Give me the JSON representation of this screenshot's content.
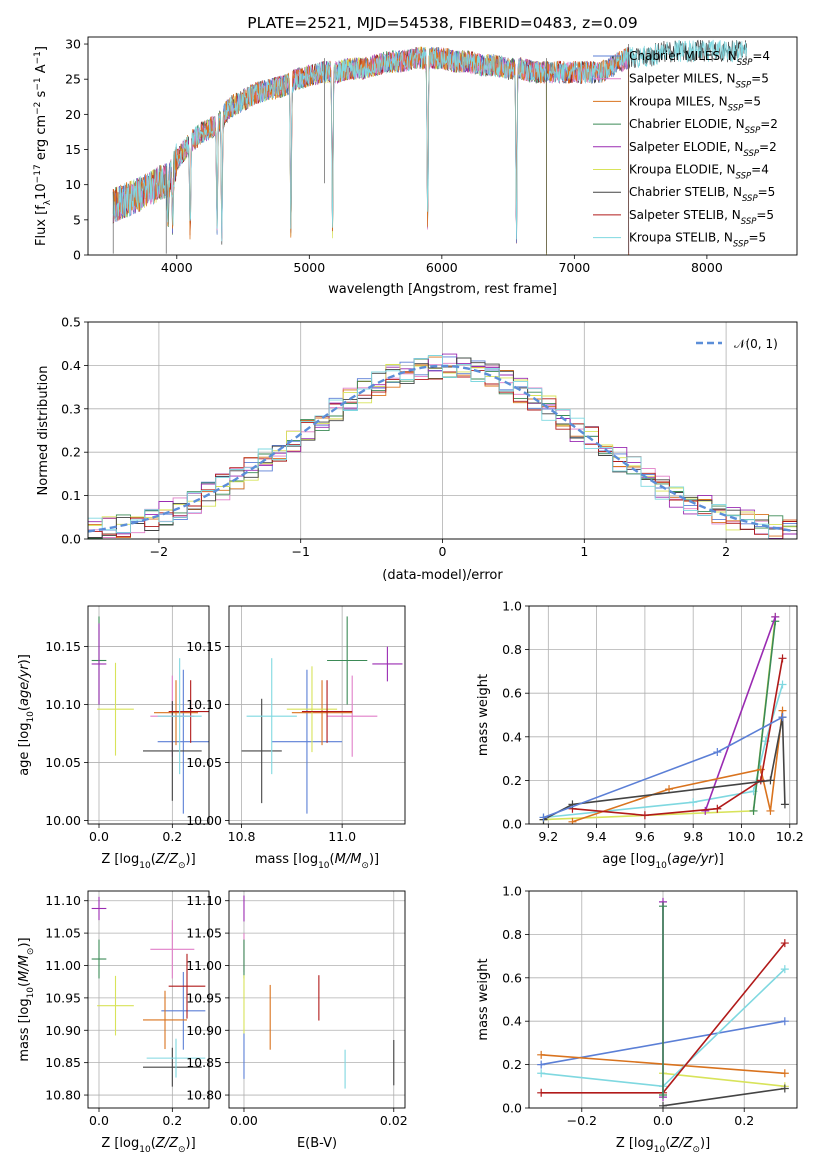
{
  "title": "PLATE=2521, MJD=54538, FIBERID=0483, z=0.09",
  "colors": {
    "chabrier_miles": "#5b7fd6",
    "salpeter_miles": "#e07fc8",
    "kroupa_miles": "#d9731e",
    "chabrier_elodie": "#3b8a56",
    "salpeter_elodie": "#9a2bb2",
    "kroupa_elodie": "#d8e35a",
    "chabrier_stelib": "#444444",
    "salpeter_stelib": "#b11a1a",
    "kroupa_stelib": "#7fd8e0",
    "gauss": "#5b8ed8"
  },
  "legend": [
    {
      "key": "chabrier_miles",
      "label": "Chabrier MILES, N",
      "n": "=4"
    },
    {
      "key": "salpeter_miles",
      "label": "Salpeter MILES, N",
      "n": "=5"
    },
    {
      "key": "kroupa_miles",
      "label": "Kroupa MILES, N",
      "n": "=5"
    },
    {
      "key": "chabrier_elodie",
      "label": "Chabrier ELODIE, N",
      "n": "=2"
    },
    {
      "key": "salpeter_elodie",
      "label": "Salpeter ELODIE, N",
      "n": "=2"
    },
    {
      "key": "kroupa_elodie",
      "label": "Kroupa ELODIE, N",
      "n": "=4"
    },
    {
      "key": "chabrier_stelib",
      "label": "Chabrier STELIB, N",
      "n": "=5"
    },
    {
      "key": "salpeter_stelib",
      "label": "Salpeter STELIB, N",
      "n": "=5"
    },
    {
      "key": "kroupa_stelib",
      "label": "Kroupa STELIB, N",
      "n": "=5"
    }
  ],
  "legend_sub": "SSP",
  "chart_data": [
    {
      "id": "spectrum",
      "type": "line",
      "xlabel": "wavelength [Angstrom, rest frame]",
      "ylabel": "Flux [f_λ 10^-17 erg cm^-2 s^-1 A^-1]",
      "xlim": [
        3330,
        8680
      ],
      "ylim": [
        0,
        31
      ],
      "xticks": [
        4000,
        5000,
        6000,
        7000,
        8000
      ],
      "yticks": [
        0,
        5,
        10,
        15,
        20,
        25,
        30
      ],
      "continuum": [
        [
          3520,
          7
        ],
        [
          3700,
          8.5
        ],
        [
          3850,
          10
        ],
        [
          3950,
          11
        ],
        [
          4000,
          13.5
        ],
        [
          4100,
          16
        ],
        [
          4200,
          17.5
        ],
        [
          4300,
          18.5
        ],
        [
          4400,
          21
        ],
        [
          4500,
          22
        ],
        [
          4600,
          23
        ],
        [
          4700,
          23.5
        ],
        [
          4800,
          24
        ],
        [
          4900,
          25
        ],
        [
          5000,
          25.5
        ],
        [
          5100,
          26
        ],
        [
          5200,
          26
        ],
        [
          5300,
          26.5
        ],
        [
          5400,
          26.5
        ],
        [
          5500,
          27
        ],
        [
          5600,
          27.5
        ],
        [
          5700,
          27.5
        ],
        [
          5800,
          28
        ],
        [
          5900,
          28
        ],
        [
          6000,
          28
        ],
        [
          6100,
          27.5
        ],
        [
          6200,
          27.5
        ],
        [
          6300,
          27
        ],
        [
          6400,
          27
        ],
        [
          6500,
          26.5
        ],
        [
          6600,
          26.5
        ],
        [
          6700,
          26
        ],
        [
          6800,
          26
        ],
        [
          6900,
          26
        ],
        [
          7000,
          26
        ],
        [
          7100,
          26
        ],
        [
          7200,
          26
        ],
        [
          7300,
          27
        ],
        [
          7400,
          28
        ],
        [
          7500,
          28
        ],
        [
          7600,
          28.5
        ],
        [
          7700,
          29
        ],
        [
          7800,
          29
        ],
        [
          7870,
          29
        ]
      ],
      "absorption_lines": [
        [
          3934,
          6
        ],
        [
          3969,
          5
        ],
        [
          4101,
          3
        ],
        [
          4304,
          4
        ],
        [
          4340,
          3
        ],
        [
          4861,
          3
        ],
        [
          5175,
          3
        ],
        [
          5893,
          4
        ],
        [
          6563,
          2
        ]
      ],
      "spikes": [
        [
          5115,
          10
        ],
        [
          6790,
          0
        ],
        [
          7410,
          0
        ],
        [
          3520,
          0
        ],
        [
          3920,
          0
        ]
      ]
    },
    {
      "id": "residuals",
      "type": "step-histogram",
      "xlabel": "(data-model)/error",
      "ylabel": "Normed distribution",
      "xlim": [
        -2.5,
        2.5
      ],
      "ylim": [
        0,
        0.5
      ],
      "xticks": [
        -2,
        -1,
        0,
        1,
        2
      ],
      "yticks": [
        0.0,
        0.1,
        0.2,
        0.3,
        0.4,
        0.5
      ],
      "bin_width": 0.1,
      "reference_curve": "N(0,1)",
      "reference_label": "𝒩(0, 1)"
    },
    {
      "id": "age_vs_Z",
      "type": "errorbar",
      "xlabel": "Z [log10(Z/Z☉)]",
      "ylabel": "age [log10(age/yr)]",
      "xlim": [
        -0.03,
        0.3
      ],
      "ylim": [
        9.997,
        10.185
      ],
      "xticks": [
        0.0,
        0.2
      ],
      "yticks": [
        10.0,
        10.05,
        10.1,
        10.15
      ],
      "points": [
        {
          "key": "chabrier_miles",
          "x": 0.23,
          "y": 10.068,
          "xerr": 0.07,
          "yerr": 0.062
        },
        {
          "key": "salpeter_miles",
          "x": 0.2,
          "y": 10.09,
          "xerr": 0.06,
          "yerr": 0.035
        },
        {
          "key": "kroupa_miles",
          "x": 0.21,
          "y": 10.093,
          "xerr": 0.06,
          "yerr": 0.028
        },
        {
          "key": "chabrier_elodie",
          "x": 0.0,
          "y": 10.138,
          "xerr": 0.02,
          "yerr": 0.038
        },
        {
          "key": "salpeter_elodie",
          "x": 0.0,
          "y": 10.135,
          "xerr": 0.02,
          "yerr": 0.035
        },
        {
          "key": "kroupa_elodie",
          "x": 0.045,
          "y": 10.096,
          "xerr": 0.05,
          "yerr": 0.04
        },
        {
          "key": "chabrier_stelib",
          "x": 0.2,
          "y": 10.06,
          "xerr": 0.08,
          "yerr": 0.043
        },
        {
          "key": "salpeter_stelib",
          "x": 0.25,
          "y": 10.094,
          "xerr": 0.06,
          "yerr": 0.027
        },
        {
          "key": "kroupa_stelib",
          "x": 0.22,
          "y": 10.09,
          "xerr": 0.06,
          "yerr": 0.05
        }
      ]
    },
    {
      "id": "age_vs_mass",
      "type": "errorbar",
      "xlabel": "mass [log10(M/M☉)]",
      "ylabel": "",
      "xlim": [
        10.775,
        11.125
      ],
      "ylim": [
        9.997,
        10.185
      ],
      "xticks": [
        10.8,
        11.0
      ],
      "yticks": [
        10.0,
        10.05,
        10.1,
        10.15
      ],
      "points": [
        {
          "key": "chabrier_miles",
          "x": 10.93,
          "y": 10.068,
          "xerr": 0.07,
          "yerr": 0.062
        },
        {
          "key": "salpeter_miles",
          "x": 11.02,
          "y": 10.09,
          "xerr": 0.05,
          "yerr": 0.035
        },
        {
          "key": "kroupa_miles",
          "x": 10.96,
          "y": 10.093,
          "xerr": 0.06,
          "yerr": 0.028
        },
        {
          "key": "chabrier_elodie",
          "x": 11.01,
          "y": 10.138,
          "xerr": 0.04,
          "yerr": 0.038
        },
        {
          "key": "salpeter_elodie",
          "x": 11.09,
          "y": 10.135,
          "xerr": 0.03,
          "yerr": 0.015
        },
        {
          "key": "kroupa_elodie",
          "x": 10.94,
          "y": 10.096,
          "xerr": 0.05,
          "yerr": 0.037
        },
        {
          "key": "chabrier_stelib",
          "x": 10.84,
          "y": 10.06,
          "xerr": 0.04,
          "yerr": 0.045
        },
        {
          "key": "salpeter_stelib",
          "x": 10.97,
          "y": 10.094,
          "xerr": 0.05,
          "yerr": 0.027
        },
        {
          "key": "kroupa_stelib",
          "x": 10.86,
          "y": 10.09,
          "xerr": 0.05,
          "yerr": 0.05
        }
      ]
    },
    {
      "id": "massweight_vs_age",
      "type": "line",
      "xlabel": "age [log10(age/yr)]",
      "ylabel": "mass weight",
      "xlim": [
        9.12,
        10.23
      ],
      "ylim": [
        0,
        1.0
      ],
      "xticks": [
        9.2,
        9.4,
        9.6,
        9.8,
        10.0,
        10.2
      ],
      "yticks": [
        0.0,
        0.2,
        0.4,
        0.6,
        0.8,
        1.0
      ],
      "series": [
        {
          "key": "kroupa_stelib",
          "x": [
            9.18,
            9.8,
            10.05,
            10.1,
            10.17
          ],
          "y": [
            0.03,
            0.1,
            0.15,
            0.38,
            0.64
          ]
        },
        {
          "key": "kroupa_elodie",
          "x": [
            9.18,
            10.05,
            10.14
          ],
          "y": [
            0.02,
            0.06,
            0.95
          ]
        },
        {
          "key": "chabrier_elodie",
          "x": [
            10.05,
            10.14
          ],
          "y": [
            0.06,
            0.93
          ]
        },
        {
          "key": "salpeter_elodie",
          "x": [
            9.85,
            10.14
          ],
          "y": [
            0.06,
            0.95
          ]
        },
        {
          "key": "kroupa_miles",
          "x": [
            9.3,
            9.7,
            10.08,
            10.12,
            10.17
          ],
          "y": [
            0.01,
            0.16,
            0.25,
            0.06,
            0.52
          ]
        },
        {
          "key": "salpeter_stelib",
          "x": [
            9.3,
            9.6,
            9.9,
            10.08,
            10.17
          ],
          "y": [
            0.07,
            0.04,
            0.07,
            0.2,
            0.76
          ]
        },
        {
          "key": "chabrier_stelib",
          "x": [
            9.18,
            9.3,
            10.12,
            10.17,
            10.18
          ],
          "y": [
            0.02,
            0.09,
            0.2,
            0.49,
            0.09
          ]
        },
        {
          "key": "chabrier_miles",
          "x": [
            9.18,
            9.9,
            10.17
          ],
          "y": [
            0.03,
            0.33,
            0.49
          ]
        }
      ]
    },
    {
      "id": "mass_vs_Z",
      "type": "errorbar",
      "xlabel": "Z [log10(Z/Z☉)]",
      "ylabel": "mass [log10(M/M☉)]",
      "xlim": [
        -0.03,
        0.3
      ],
      "ylim": [
        10.78,
        11.115
      ],
      "xticks": [
        0.0,
        0.2
      ],
      "yticks": [
        10.8,
        10.85,
        10.9,
        10.95,
        11.0,
        11.05,
        11.1
      ],
      "points": [
        {
          "key": "chabrier_miles",
          "x": 0.23,
          "y": 10.93,
          "xerr": 0.06,
          "yerr": 0.06
        },
        {
          "key": "salpeter_miles",
          "x": 0.2,
          "y": 11.025,
          "xerr": 0.06,
          "yerr": 0.045
        },
        {
          "key": "kroupa_miles",
          "x": 0.18,
          "y": 10.916,
          "xerr": 0.06,
          "yerr": 0.045
        },
        {
          "key": "chabrier_elodie",
          "x": 0.0,
          "y": 11.01,
          "xerr": 0.02,
          "yerr": 0.03
        },
        {
          "key": "salpeter_elodie",
          "x": 0.0,
          "y": 11.088,
          "xerr": 0.02,
          "yerr": 0.018
        },
        {
          "key": "kroupa_elodie",
          "x": 0.045,
          "y": 10.938,
          "xerr": 0.05,
          "yerr": 0.046
        },
        {
          "key": "chabrier_stelib",
          "x": 0.2,
          "y": 10.843,
          "xerr": 0.08,
          "yerr": 0.03
        },
        {
          "key": "salpeter_stelib",
          "x": 0.24,
          "y": 10.968,
          "xerr": 0.05,
          "yerr": 0.05
        },
        {
          "key": "kroupa_stelib",
          "x": 0.21,
          "y": 10.857,
          "xerr": 0.08,
          "yerr": 0.03
        }
      ]
    },
    {
      "id": "mass_vs_ebv",
      "type": "errorbar",
      "xlabel": "E(B-V)",
      "ylabel": "",
      "xlim": [
        -0.002,
        0.0215
      ],
      "ylim": [
        10.78,
        11.115
      ],
      "xticks": [
        0.0,
        0.02
      ],
      "yticks": [
        10.8,
        10.85,
        10.9,
        10.95,
        11.0,
        11.05,
        11.1
      ],
      "points": [
        {
          "key": "chabrier_miles",
          "x": 0.0,
          "y": 10.86,
          "yerr": 0.035
        },
        {
          "key": "salpeter_miles",
          "x": 0.0,
          "y": 11.02,
          "yerr": 0.03
        },
        {
          "key": "kroupa_miles",
          "x": 0.0035,
          "y": 10.92,
          "yerr": 0.05
        },
        {
          "key": "chabrier_elodie",
          "x": 0.0,
          "y": 11.01,
          "yerr": 0.03
        },
        {
          "key": "salpeter_elodie",
          "x": 0.0,
          "y": 11.088,
          "yerr": 0.02
        },
        {
          "key": "kroupa_elodie",
          "x": 0.0,
          "y": 10.94,
          "yerr": 0.045
        },
        {
          "key": "chabrier_stelib",
          "x": 0.02,
          "y": 10.85,
          "yerr": 0.035
        },
        {
          "key": "salpeter_stelib",
          "x": 0.01,
          "y": 10.95,
          "yerr": 0.035
        },
        {
          "key": "kroupa_stelib",
          "x": 0.0135,
          "y": 10.84,
          "yerr": 0.03
        }
      ]
    },
    {
      "id": "massweight_vs_Z",
      "type": "line",
      "xlabel": "Z [log10(Z/Z☉)]",
      "ylabel": "mass weight",
      "xlim": [
        -0.33,
        0.33
      ],
      "ylim": [
        0,
        1.0
      ],
      "xticks": [
        -0.2,
        0.0,
        0.2
      ],
      "yticks": [
        0.0,
        0.2,
        0.4,
        0.6,
        0.8,
        1.0
      ],
      "series": [
        {
          "key": "chabrier_miles",
          "x": [
            -0.3,
            0.3
          ],
          "y": [
            0.2,
            0.4
          ]
        },
        {
          "key": "kroupa_miles",
          "x": [
            -0.3,
            0.3
          ],
          "y": [
            0.245,
            0.16
          ]
        },
        {
          "key": "kroupa_elodie",
          "x": [
            0.0,
            0.3
          ],
          "y": [
            0.16,
            0.1
          ]
        },
        {
          "key": "kroupa_stelib",
          "x": [
            -0.3,
            0.0,
            0.3
          ],
          "y": [
            0.16,
            0.1,
            0.64
          ]
        },
        {
          "key": "salpeter_stelib",
          "x": [
            -0.3,
            0.0,
            0.3
          ],
          "y": [
            0.07,
            0.07,
            0.76
          ]
        },
        {
          "key": "chabrier_stelib",
          "x": [
            0.0,
            0.3
          ],
          "y": [
            0.01,
            0.09
          ]
        },
        {
          "key": "salpeter_elodie",
          "x": [
            0.0,
            0.0
          ],
          "y": [
            0.05,
            0.95
          ]
        },
        {
          "key": "chabrier_elodie",
          "x": [
            0.0,
            0.0
          ],
          "y": [
            0.06,
            0.93
          ]
        }
      ]
    }
  ]
}
